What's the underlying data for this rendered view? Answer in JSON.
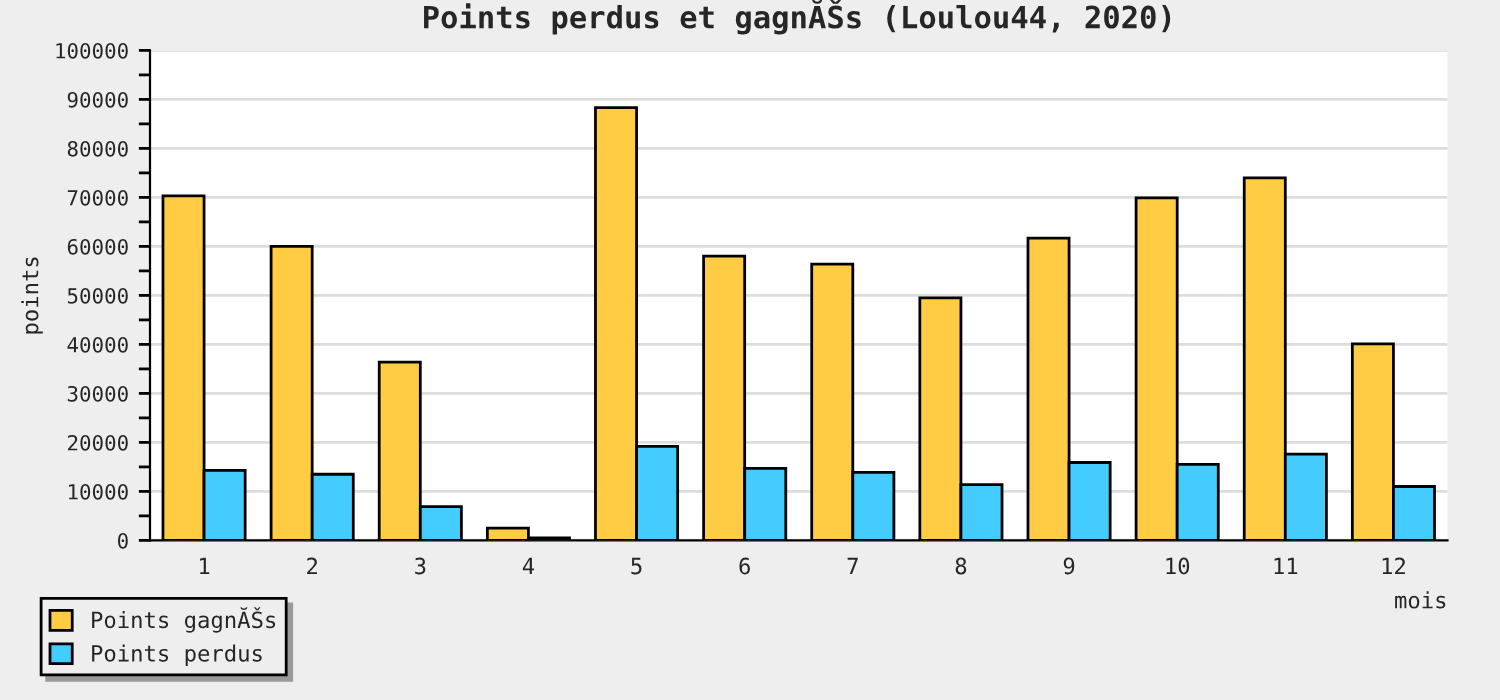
{
  "chart_data": {
    "type": "bar",
    "title": "Points perdus et gagnĂŠs (Loulou44, 2020)",
    "xlabel": "mois",
    "ylabel": "points",
    "categories": [
      "1",
      "2",
      "3",
      "4",
      "5",
      "6",
      "7",
      "8",
      "9",
      "10",
      "11",
      "12"
    ],
    "series": [
      {
        "name": "Points gagnĂŠs",
        "color": "#ffcc44",
        "values": [
          70300,
          60000,
          36400,
          2500,
          88300,
          58000,
          56400,
          49500,
          61700,
          69900,
          74000,
          40100
        ]
      },
      {
        "name": "Points perdus",
        "color": "#44ccff",
        "values": [
          14300,
          13500,
          6900,
          500,
          19200,
          14700,
          13900,
          11400,
          15900,
          15500,
          17600,
          11000
        ]
      }
    ],
    "ylim": [
      0,
      100000
    ],
    "yticks": [
      0,
      {
        "value": 5000,
        "label": null
      },
      10000,
      {
        "value": 15000,
        "label": null
      },
      20000,
      {
        "value": 25000,
        "label": null
      },
      30000,
      {
        "value": 35000,
        "label": null
      },
      40000,
      {
        "value": 45000,
        "label": null
      },
      50000,
      {
        "value": 55000,
        "label": null
      },
      60000,
      {
        "value": 65000,
        "label": null
      },
      70000,
      {
        "value": 75000,
        "label": null
      },
      80000,
      {
        "value": 85000,
        "label": null
      },
      90000,
      {
        "value": 95000,
        "label": null
      },
      100000
    ],
    "grid": "y",
    "legend": "bottom left"
  }
}
